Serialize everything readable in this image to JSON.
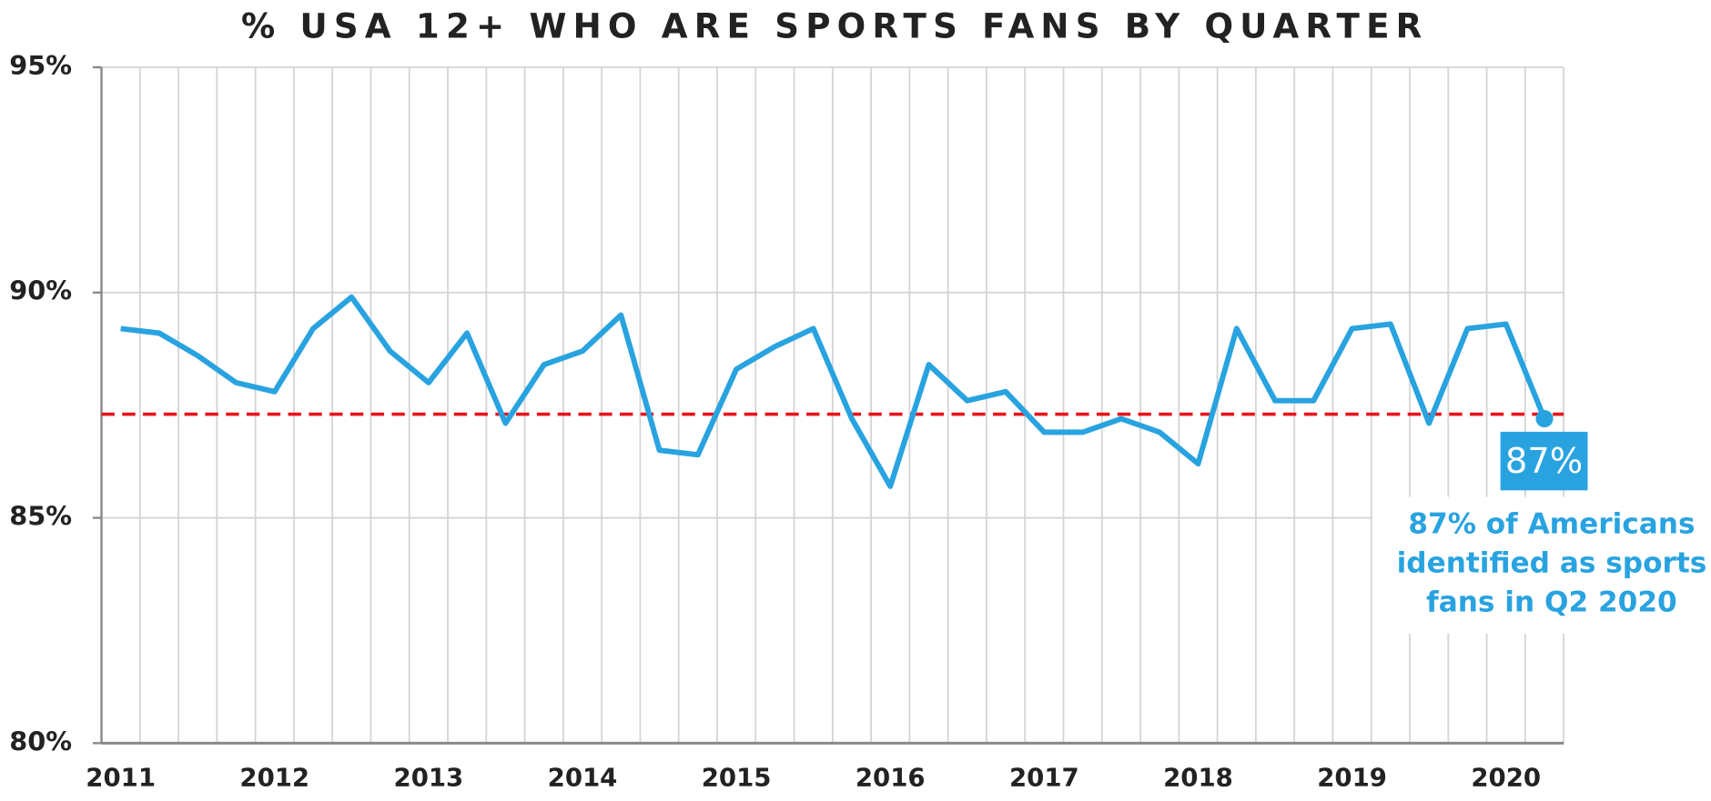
{
  "chart_data": {
    "type": "line",
    "title": "% USA 12+ WHO ARE SPORTS FANS BY QUARTER",
    "categories": [
      "2011",
      null,
      null,
      null,
      "2012",
      null,
      null,
      null,
      "2013",
      null,
      null,
      null,
      "2014",
      null,
      null,
      null,
      "2015",
      null,
      null,
      null,
      "2016",
      null,
      null,
      null,
      "2017",
      null,
      null,
      null,
      "2018",
      null,
      null,
      null,
      "2019",
      null,
      null,
      null,
      "2020",
      null
    ],
    "series": [
      {
        "name": "% USA 12+ who are sports fans",
        "color": "#29a3e0",
        "values": [
          89.2,
          89.1,
          88.6,
          88.0,
          87.8,
          89.2,
          89.9,
          88.7,
          88.0,
          89.1,
          87.1,
          88.4,
          88.7,
          89.5,
          86.5,
          86.4,
          88.3,
          88.8,
          89.2,
          87.2,
          85.7,
          88.4,
          87.6,
          87.8,
          86.9,
          86.9,
          87.2,
          86.9,
          86.2,
          89.2,
          87.6,
          87.6,
          89.2,
          89.3,
          87.1,
          89.2,
          89.3,
          87.2
        ]
      }
    ],
    "ylim": [
      80,
      95
    ],
    "yticks": [
      {
        "value": 80,
        "label": "80%"
      },
      {
        "value": 85,
        "label": "85%"
      },
      {
        "value": 90,
        "label": "90%"
      },
      {
        "value": 95,
        "label": "95%"
      }
    ],
    "grid": true,
    "reference_line": {
      "value": 87.3,
      "color": "#e8141b"
    },
    "highlight": {
      "index": 37,
      "label": "87%"
    },
    "annotation": [
      "87% of Americans",
      "identified as sports",
      "fans in Q2 2020"
    ]
  }
}
